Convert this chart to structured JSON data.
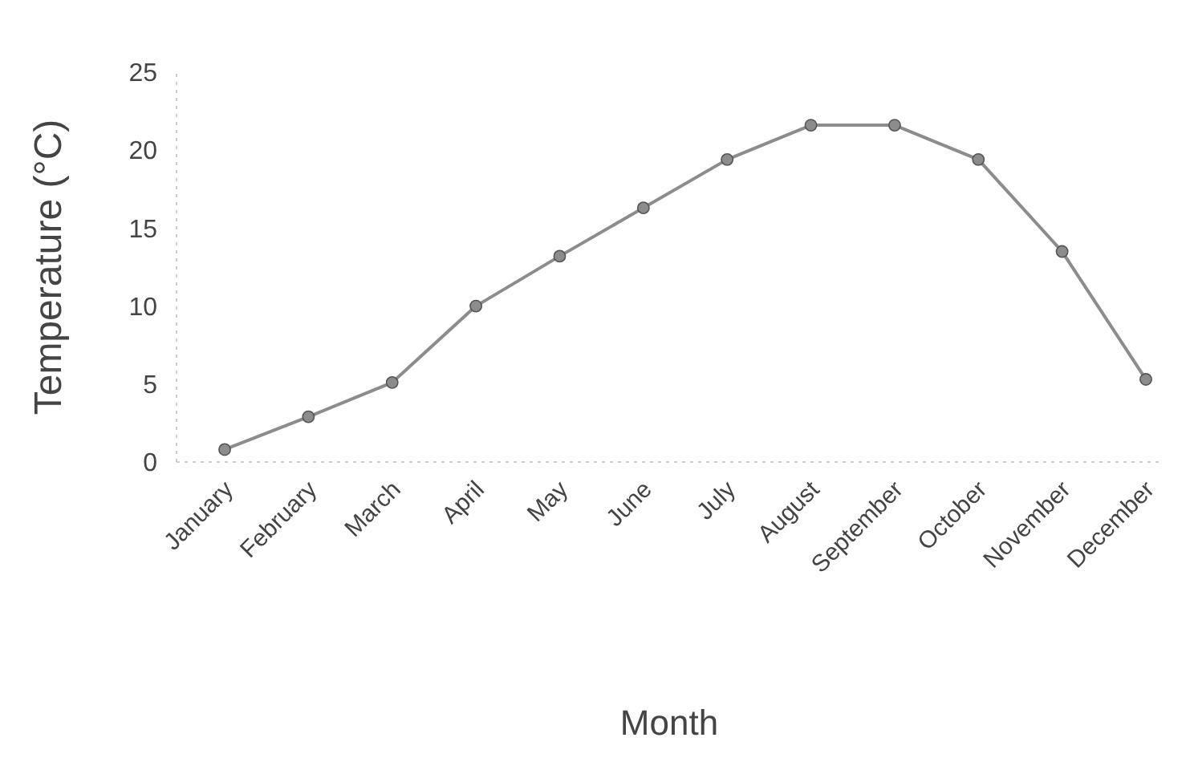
{
  "chart_data": {
    "type": "line",
    "xlabel": "Month",
    "ylabel": "Temperature (°C)",
    "categories": [
      "January",
      "February",
      "March",
      "April",
      "May",
      "June",
      "July",
      "August",
      "September",
      "October",
      "November",
      "December"
    ],
    "series": [
      {
        "color": "#8c8c8c",
        "values": [
          0.8,
          2.9,
          5.1,
          10.0,
          13.2,
          16.3,
          19.4,
          21.6,
          21.6,
          19.4,
          13.5,
          5.3
        ]
      }
    ],
    "ylim": [
      0,
      25
    ],
    "yticks": [
      0,
      5,
      10,
      15,
      20,
      25
    ],
    "marker": "circle",
    "grid": false
  }
}
